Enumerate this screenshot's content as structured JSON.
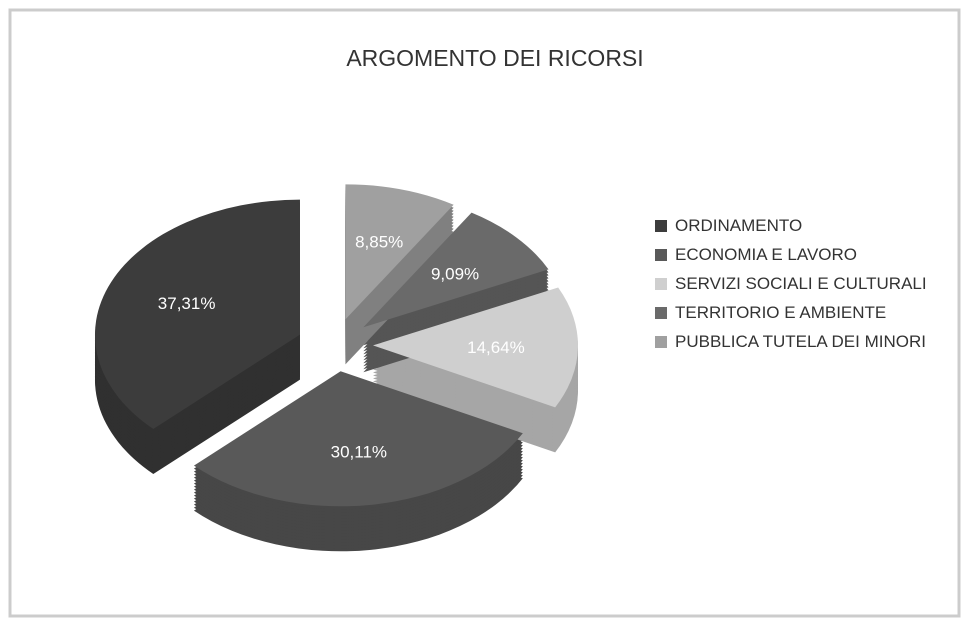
{
  "chart_data": {
    "type": "pie",
    "title": "ARGOMENTO DEI RICORSI",
    "categories": [
      "ORDINAMENTO",
      "ECONOMIA E LAVORO",
      "SERVIZI SOCIALI E CULTURALI",
      "TERRITORIO E AMBIENTE",
      "PUBBLICA TUTELA DEI MINORI"
    ],
    "values": [
      37.31,
      30.11,
      14.64,
      9.09,
      8.85
    ],
    "value_labels": [
      "37,31%",
      "30,11%",
      "14,64%",
      "9,09%",
      "8,85%"
    ],
    "colors": [
      "#3c3c3c",
      "#595959",
      "#cfcfcf",
      "#6a6a6a",
      "#a0a0a0"
    ],
    "legend": "right"
  }
}
